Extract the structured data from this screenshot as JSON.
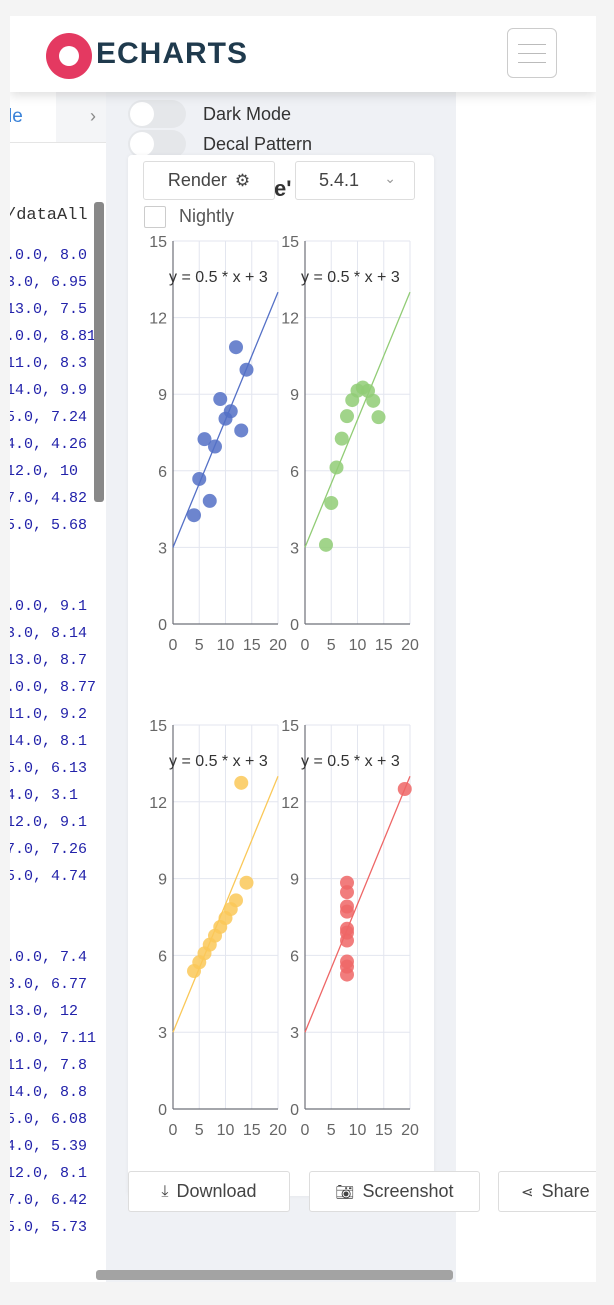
{
  "header": {
    "logo_text": "ECHARTS",
    "brand_color": "#e43961",
    "menu_icon": "hamburger-icon"
  },
  "editor": {
    "tab_label": "le",
    "partial_header": "/dataAll",
    "code_lines": [
      ".0.0, 8.0",
      "3.0, 6.95",
      "13.0, 7.5",
      ".0.0, 8.81",
      "11.0, 8.3",
      "14.0, 9.9",
      "5.0, 7.24",
      "4.0, 4.26",
      "12.0, 10",
      "7.0, 4.82",
      "5.0, 5.68",
      "",
      "",
      ".0.0, 9.1",
      "3.0, 8.14",
      "13.0, 8.7",
      ".0.0, 8.77",
      "11.0, 9.2",
      "14.0, 8.1",
      "5.0, 6.13",
      "4.0, 3.1",
      "12.0, 9.1",
      "7.0, 7.26",
      "5.0, 4.74",
      "",
      "",
      ".0.0, 7.4",
      "3.0, 6.77",
      "13.0, 12",
      ".0.0, 7.11",
      "11.0, 7.8",
      "14.0, 8.8",
      "5.0, 6.08",
      "4.0, 5.39",
      "12.0, 8.1",
      "7.0, 6.42",
      "5.0, 5.73"
    ]
  },
  "toolbar": {
    "dark_mode_label": "Dark Mode",
    "decal_label": "Decal Pattern",
    "render_label": "Render",
    "version_label": "5.4.1",
    "nightly_label": "Nightly",
    "title_fragment": "e'",
    "download_label": "Download",
    "screenshot_label": "Screenshot",
    "share_label": "Share"
  },
  "chart_data": [
    {
      "type": "scatter",
      "color": "#5470c6",
      "annotation": "y = 0.5 * x + 3",
      "xlim": [
        0,
        20
      ],
      "ylim": [
        0,
        15
      ],
      "x_ticks": [
        "0",
        "5",
        "10",
        "15",
        "20"
      ],
      "y_ticks": [
        "0",
        "3",
        "6",
        "9",
        "12",
        "15"
      ],
      "regression": {
        "slope": 0.5,
        "intercept": 3
      },
      "points": [
        [
          10,
          8.04
        ],
        [
          8,
          6.95
        ],
        [
          13,
          7.58
        ],
        [
          9,
          8.81
        ],
        [
          11,
          8.33
        ],
        [
          14,
          9.96
        ],
        [
          6,
          7.24
        ],
        [
          4,
          4.26
        ],
        [
          12,
          10.84
        ],
        [
          7,
          4.82
        ],
        [
          5,
          5.68
        ]
      ]
    },
    {
      "type": "scatter",
      "color": "#91cc75",
      "annotation": "y = 0.5 * x + 3",
      "xlim": [
        0,
        20
      ],
      "ylim": [
        0,
        15
      ],
      "x_ticks": [
        "0",
        "5",
        "10",
        "15",
        "20"
      ],
      "y_ticks": [
        "0",
        "3",
        "6",
        "9",
        "12",
        "15"
      ],
      "regression": {
        "slope": 0.5,
        "intercept": 3
      },
      "points": [
        [
          10,
          9.14
        ],
        [
          8,
          8.14
        ],
        [
          13,
          8.74
        ],
        [
          9,
          8.77
        ],
        [
          11,
          9.26
        ],
        [
          14,
          8.1
        ],
        [
          6,
          6.13
        ],
        [
          4,
          3.1
        ],
        [
          12,
          9.13
        ],
        [
          7,
          7.26
        ],
        [
          5,
          4.74
        ]
      ]
    },
    {
      "type": "scatter",
      "color": "#fac858",
      "annotation": "y = 0.5 * x + 3",
      "xlim": [
        0,
        20
      ],
      "ylim": [
        0,
        15
      ],
      "x_ticks": [
        "0",
        "5",
        "10",
        "15",
        "20"
      ],
      "y_ticks": [
        "0",
        "3",
        "6",
        "9",
        "12",
        "15"
      ],
      "regression": {
        "slope": 0.5,
        "intercept": 3
      },
      "points": [
        [
          10,
          7.46
        ],
        [
          8,
          6.77
        ],
        [
          13,
          12.74
        ],
        [
          9,
          7.11
        ],
        [
          11,
          7.81
        ],
        [
          14,
          8.84
        ],
        [
          6,
          6.08
        ],
        [
          4,
          5.39
        ],
        [
          12,
          8.15
        ],
        [
          7,
          6.42
        ],
        [
          5,
          5.73
        ]
      ]
    },
    {
      "type": "scatter",
      "color": "#ee6666",
      "annotation": "y = 0.5 * x + 3",
      "xlim": [
        0,
        20
      ],
      "ylim": [
        0,
        15
      ],
      "x_ticks": [
        "0",
        "5",
        "10",
        "15",
        "20"
      ],
      "y_ticks": [
        "0",
        "3",
        "6",
        "9",
        "12",
        "15"
      ],
      "regression": {
        "slope": 0.5,
        "intercept": 3
      },
      "points": [
        [
          8,
          6.58
        ],
        [
          8,
          5.76
        ],
        [
          8,
          7.71
        ],
        [
          8,
          8.84
        ],
        [
          8,
          8.47
        ],
        [
          8,
          7.04
        ],
        [
          8,
          5.25
        ],
        [
          19,
          12.5
        ],
        [
          8,
          5.56
        ],
        [
          8,
          7.91
        ],
        [
          8,
          6.89
        ]
      ]
    }
  ]
}
